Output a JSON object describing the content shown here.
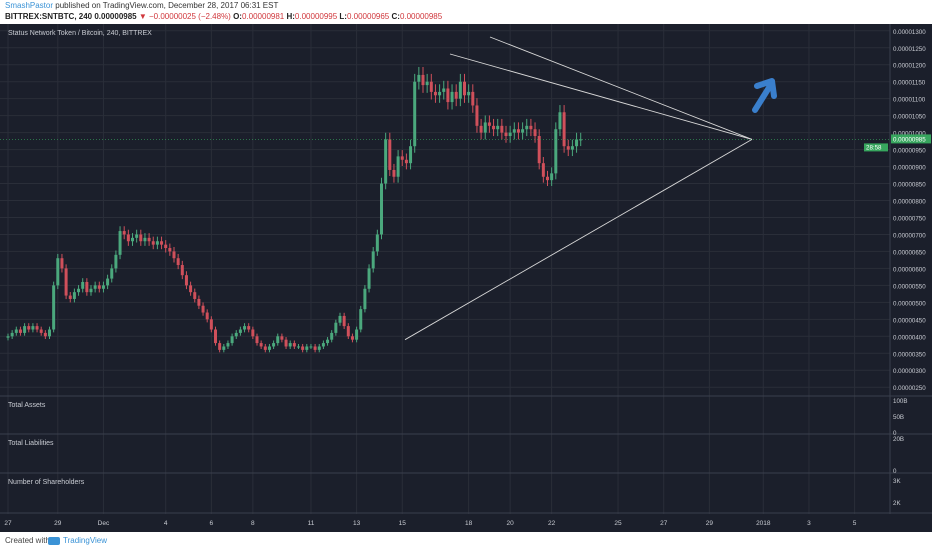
{
  "header": {
    "author": "SmashPastor",
    "published": "published on TradingView.com, December 28, 2017 06:31 EST",
    "symbol": "BITTREX:SNTBTC, 240",
    "last": "0.00000985",
    "change": "▼ −0.00000025 (−2.48%)",
    "o_label": "O:",
    "o_value": "0.00000981",
    "h_label": "H:",
    "h_value": "0.00000995",
    "l_label": "L:",
    "l_value": "0.00000965",
    "c_label": "C:",
    "c_value": "0.00000985"
  },
  "chart_data": [
    {
      "type": "candlestick",
      "title": "Status Network Token / Bitcoin, 240, BITTREX",
      "ylim": [
        2.3e-06,
        1.32e-05
      ],
      "y_ticks": [
        "0.00001300",
        "0.00001250",
        "0.00001200",
        "0.00001150",
        "0.00001100",
        "0.00001050",
        "0.00001000",
        "0.00000950",
        "0.00000900",
        "0.00000850",
        "0.00000800",
        "0.00000750",
        "0.00000700",
        "0.00000650",
        "0.00000600",
        "0.00000550",
        "0.00000500",
        "0.00000450",
        "0.00000400",
        "0.00000350",
        "0.00000300",
        "0.00000250"
      ],
      "y_tick_values": [
        1.3e-05,
        1.25e-05,
        1.2e-05,
        1.15e-05,
        1.1e-05,
        1.05e-05,
        1e-05,
        9.5e-06,
        9e-06,
        8.5e-06,
        8e-06,
        7.5e-06,
        7e-06,
        6.5e-06,
        6e-06,
        5.5e-06,
        5e-06,
        4.5e-06,
        4e-06,
        3.5e-06,
        3e-06,
        2.5e-06
      ],
      "x_labels": [
        "27",
        "29",
        "Dec",
        "4",
        "6",
        "8",
        "11",
        "13",
        "15",
        "18",
        "20",
        "22",
        "25",
        "27",
        "29",
        "2018",
        "3",
        "5"
      ],
      "x_label_bar_index": [
        0,
        12,
        23,
        38,
        49,
        59,
        73,
        84,
        95,
        111,
        121,
        131,
        147,
        158,
        169,
        182,
        193,
        204
      ],
      "last_price_label": "0.00000985",
      "countdown_label": "28:58",
      "close": [
        4e-06,
        4.1e-06,
        4.2e-06,
        4.1e-06,
        4.3e-06,
        4.2e-06,
        4.3e-06,
        4.2e-06,
        4.1e-06,
        4e-06,
        4.2e-06,
        5.5e-06,
        6.3e-06,
        6e-06,
        5.2e-06,
        5.1e-06,
        5.3e-06,
        5.4e-06,
        5.6e-06,
        5.3e-06,
        5.4e-06,
        5.5e-06,
        5.4e-06,
        5.5e-06,
        5.7e-06,
        6e-06,
        6.4e-06,
        7.1e-06,
        7e-06,
        6.8e-06,
        6.9e-06,
        7e-06,
        6.8e-06,
        6.9e-06,
        6.8e-06,
        6.7e-06,
        6.8e-06,
        6.7e-06,
        6.6e-06,
        6.5e-06,
        6.3e-06,
        6.1e-06,
        5.8e-06,
        5.5e-06,
        5.3e-06,
        5.1e-06,
        4.9e-06,
        4.7e-06,
        4.5e-06,
        4.2e-06,
        3.8e-06,
        3.6e-06,
        3.7e-06,
        3.8e-06,
        4e-06,
        4.1e-06,
        4.2e-06,
        4.3e-06,
        4.2e-06,
        4e-06,
        3.8e-06,
        3.7e-06,
        3.6e-06,
        3.7e-06,
        3.8e-06,
        4e-06,
        3.9e-06,
        3.7e-06,
        3.8e-06,
        3.7e-06,
        3.7e-06,
        3.6e-06,
        3.7e-06,
        3.7e-06,
        3.6e-06,
        3.7e-06,
        3.8e-06,
        3.9e-06,
        4.1e-06,
        4.4e-06,
        4.6e-06,
        4.3e-06,
        4e-06,
        3.9e-06,
        4.2e-06,
        4.8e-06,
        5.4e-06,
        6e-06,
        6.5e-06,
        7e-06,
        8.5e-06,
        9.8e-06,
        8.9e-06,
        8.7e-06,
        9.3e-06,
        9.2e-06,
        9.1e-06,
        9.6e-06,
        1.15e-05,
        1.17e-05,
        1.14e-05,
        1.15e-05,
        1.12e-05,
        1.11e-05,
        1.12e-05,
        1.13e-05,
        1.09e-05,
        1.12e-05,
        1.1e-05,
        1.15e-05,
        1.11e-05,
        1.12e-05,
        1.08e-05,
        1.02e-05,
        1e-05,
        1.03e-05,
        1.02e-05,
        1.01e-05,
        1.02e-05,
        1e-05,
        9.9e-06,
        1e-05,
        1.01e-05,
        1e-05,
        1.01e-05,
        1.02e-05,
        1.01e-05,
        9.9e-06,
        9.1e-06,
        8.7e-06,
        8.6e-06,
        8.8e-06,
        1.01e-05,
        1.06e-05,
        9.6e-06,
        9.5e-06,
        9.6e-06,
        9.8e-06,
        9.8e-06
      ],
      "trendlines": [
        {
          "from": [
            1.24e-05,
            "bar 60"
          ],
          "to": [
            9.8e-06,
            "bar 140"
          ]
        },
        {
          "from": [
            1.2e-05,
            "bar 62"
          ],
          "to": [
            9.8e-06,
            "bar 140"
          ]
        },
        {
          "from": [
            3.9e-06,
            "bar 77"
          ],
          "to": [
            9.8e-06,
            "bar 140"
          ]
        }
      ]
    },
    {
      "type": "bar",
      "title": "Total Assets",
      "y_ticks": [
        "100B",
        "50B",
        "0"
      ],
      "values": []
    },
    {
      "type": "bar",
      "title": "Total Liabilities",
      "y_ticks": [
        "20B",
        "0"
      ],
      "values": []
    },
    {
      "type": "bar",
      "title": "Number of Shareholders",
      "y_ticks": [
        "3K",
        "2K"
      ],
      "values": []
    }
  ],
  "footer": {
    "created": "Created with",
    "brand": "TradingView"
  },
  "colors": {
    "background": "#1b1f2b",
    "grid": "#2a2e39",
    "up": "#4ba87d",
    "down": "#d0505b",
    "trendline": "#d8d8d8",
    "arrow": "#3a7fcc",
    "price_label": "#37a65e"
  },
  "annotation_icon": "arrow-up-right-icon"
}
